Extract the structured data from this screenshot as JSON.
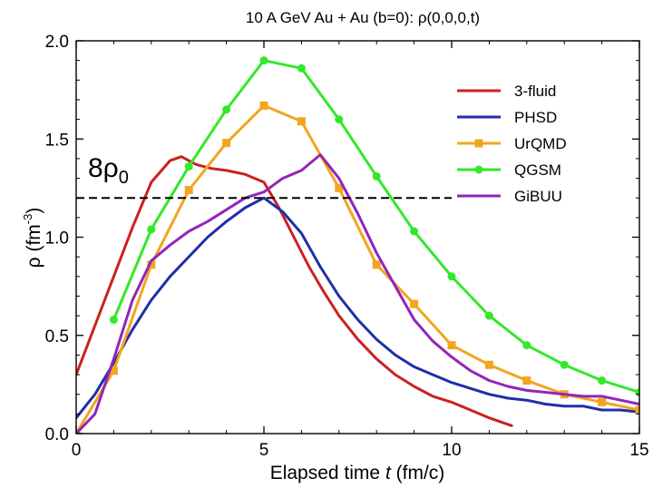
{
  "chart_data": {
    "type": "line",
    "title": "10 A GeV Au + Au (b=0):  ρ(0,0,0,t)",
    "xlabel": "Elapsed time",
    "xlabel_var": "t",
    "xlabel_unit": "(fm/c)",
    "ylabel": "ρ",
    "ylabel_unit": "(fm",
    "ylabel_unit_exp": "-3",
    "ylabel_unit_close": ")",
    "xlim": [
      0,
      15
    ],
    "ylim": [
      0,
      2.0
    ],
    "x_ticks": [
      0,
      5,
      10,
      15
    ],
    "x_tick_labels": [
      "0",
      "5",
      "10",
      "15"
    ],
    "y_ticks": [
      0,
      0.5,
      1.0,
      1.5,
      2.0
    ],
    "y_tick_labels": [
      "0.0",
      "0.5",
      "1.0",
      "1.5",
      "2.0"
    ],
    "grid": false,
    "legend_position": "top-right",
    "reference_line": {
      "label": "8ρ",
      "label_sub": "0",
      "y": 1.2,
      "x_from": 0,
      "x_to": 10,
      "color": "#000000"
    },
    "series": [
      {
        "name": "3-fluid",
        "color": "#cc2020",
        "marker": "none",
        "x": [
          0,
          0.5,
          1.0,
          1.5,
          2.0,
          2.5,
          2.8,
          3.2,
          3.6,
          4.0,
          4.5,
          5.0,
          5.4,
          5.8,
          6.2,
          6.6,
          7.0,
          7.5,
          8.0,
          8.5,
          9.0,
          9.5,
          10.0,
          10.5,
          11.0,
          11.6
        ],
        "y": [
          0.3,
          0.55,
          0.8,
          1.05,
          1.28,
          1.39,
          1.41,
          1.37,
          1.35,
          1.34,
          1.32,
          1.28,
          1.15,
          1.0,
          0.85,
          0.72,
          0.6,
          0.48,
          0.38,
          0.3,
          0.24,
          0.19,
          0.16,
          0.12,
          0.08,
          0.04
        ]
      },
      {
        "name": "PHSD",
        "color": "#1f2fa8",
        "marker": "none",
        "x": [
          0,
          0.5,
          1.0,
          1.5,
          2.0,
          2.5,
          3.0,
          3.5,
          4.0,
          4.5,
          5.0,
          5.5,
          6.0,
          6.5,
          7.0,
          7.5,
          8.0,
          8.5,
          9.0,
          9.5,
          10.0,
          10.5,
          11.0,
          11.5,
          12.0,
          12.5,
          13.0,
          13.5,
          14.0,
          14.5,
          15.0
        ],
        "y": [
          0.08,
          0.2,
          0.36,
          0.53,
          0.68,
          0.8,
          0.9,
          1.0,
          1.08,
          1.15,
          1.2,
          1.13,
          1.02,
          0.85,
          0.7,
          0.58,
          0.48,
          0.4,
          0.34,
          0.3,
          0.26,
          0.23,
          0.2,
          0.18,
          0.17,
          0.15,
          0.14,
          0.14,
          0.12,
          0.12,
          0.11
        ]
      },
      {
        "name": "UrQMD",
        "color": "#f2a51e",
        "marker": "square",
        "x": [
          0,
          1,
          2,
          3,
          4,
          5,
          6,
          7,
          8,
          9,
          10,
          11,
          12,
          13,
          14,
          15
        ],
        "y": [
          0.0,
          0.32,
          0.86,
          1.24,
          1.48,
          1.67,
          1.59,
          1.25,
          0.86,
          0.66,
          0.45,
          0.35,
          0.27,
          0.2,
          0.16,
          0.12
        ]
      },
      {
        "name": "QGSM",
        "color": "#33e82a",
        "marker": "circle",
        "x": [
          1,
          2,
          3,
          4,
          5,
          6,
          7,
          8,
          9,
          10,
          11,
          12,
          13,
          14,
          15
        ],
        "y": [
          0.58,
          1.04,
          1.36,
          1.65,
          1.9,
          1.86,
          1.6,
          1.31,
          1.03,
          0.8,
          0.6,
          0.45,
          0.35,
          0.27,
          0.21
        ]
      },
      {
        "name": "GiBUU",
        "color": "#9225b8",
        "marker": "none",
        "x": [
          0,
          0.5,
          1.0,
          1.5,
          2.0,
          2.5,
          3.0,
          3.5,
          4.0,
          4.5,
          5.0,
          5.5,
          6.0,
          6.5,
          7.0,
          7.5,
          8.0,
          8.5,
          9.0,
          9.5,
          10.0,
          10.5,
          11.0,
          11.5,
          12.0,
          12.5,
          13.0,
          13.5,
          14.0,
          14.5,
          15.0
        ],
        "y": [
          0.0,
          0.1,
          0.38,
          0.68,
          0.88,
          0.96,
          1.03,
          1.08,
          1.14,
          1.2,
          1.23,
          1.3,
          1.34,
          1.42,
          1.3,
          1.12,
          0.92,
          0.75,
          0.58,
          0.47,
          0.39,
          0.32,
          0.27,
          0.24,
          0.22,
          0.21,
          0.2,
          0.19,
          0.19,
          0.17,
          0.15
        ]
      }
    ]
  }
}
